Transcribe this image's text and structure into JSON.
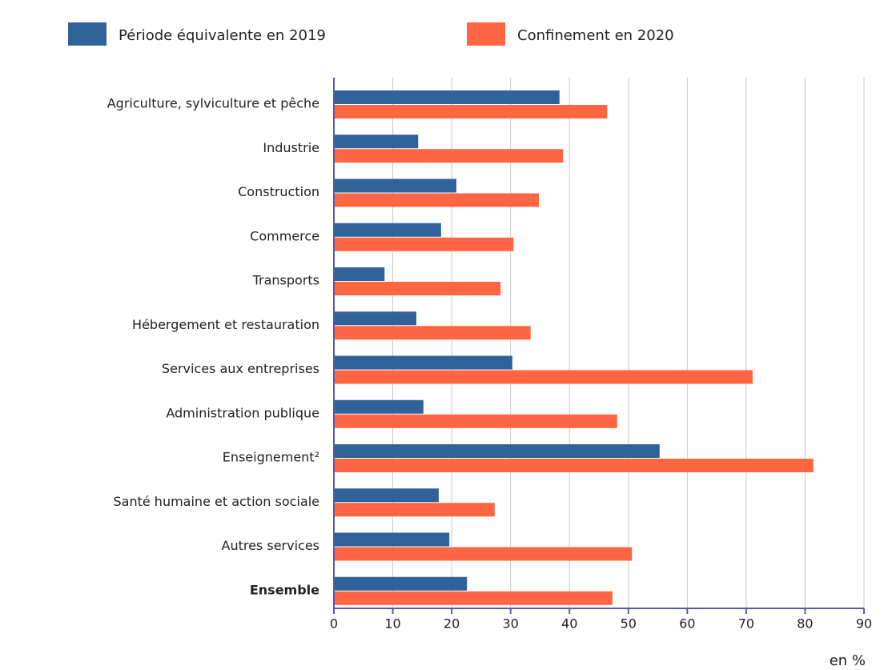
{
  "chart_data": {
    "type": "bar",
    "orientation": "horizontal",
    "categories": [
      "Agriculture, sylviculture et pêche",
      "Industrie",
      "Construction",
      "Commerce",
      "Transports",
      "Hébergement et restauration",
      "Services aux entreprises",
      "Administration publique",
      "Enseignement²",
      "Santé humaine et action sociale",
      "Autres services",
      "Ensemble"
    ],
    "series": [
      {
        "name": "Période équivalente en 2019",
        "color": "#2f6299",
        "values": [
          38.3,
          14.3,
          20.8,
          18.2,
          8.6,
          14.0,
          30.3,
          15.2,
          55.3,
          17.8,
          19.6,
          22.6
        ]
      },
      {
        "name": "Confinement en 2020",
        "color": "#ff6641",
        "values": [
          46.4,
          38.9,
          34.8,
          30.5,
          28.3,
          33.4,
          71.1,
          48.1,
          81.4,
          27.3,
          50.6,
          47.3
        ]
      }
    ],
    "xlabel": "en %",
    "xlim": [
      0,
      90
    ],
    "xticks": [
      0,
      10,
      20,
      30,
      40,
      50,
      60,
      70,
      80,
      90
    ],
    "grid": true,
    "legend": "top"
  }
}
